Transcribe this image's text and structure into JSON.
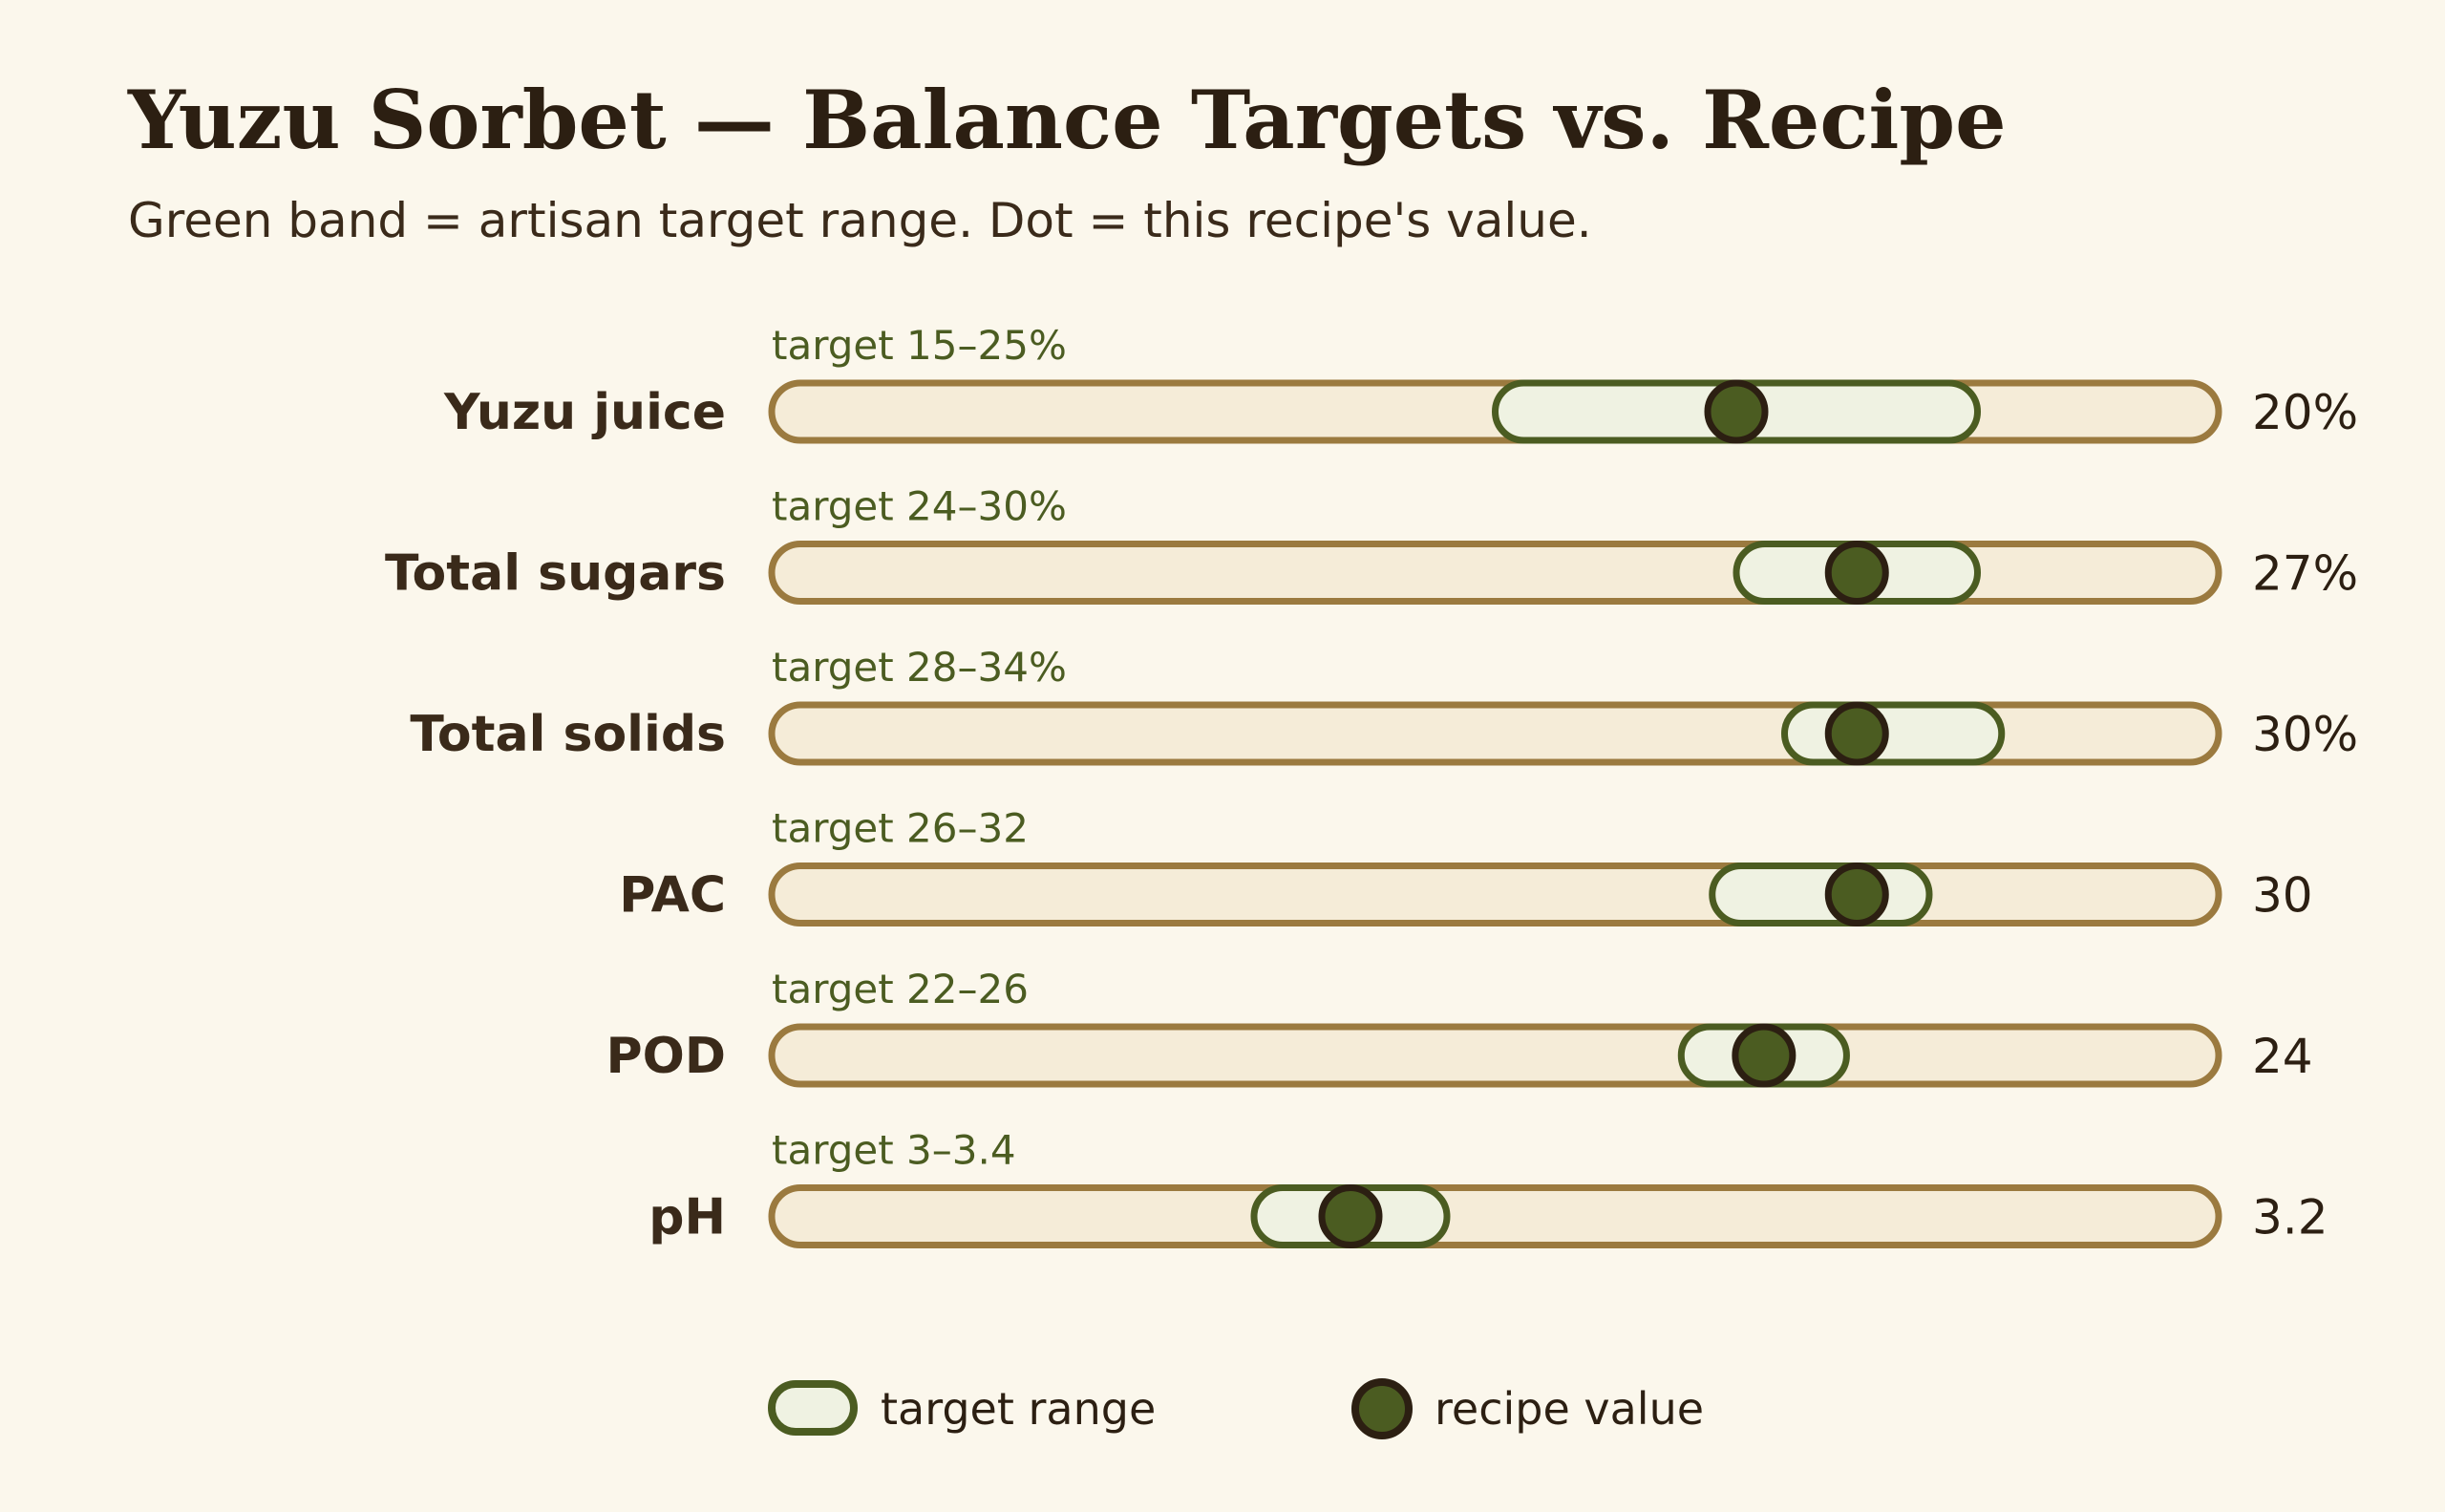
{
  "title": "Yuzu Sorbet — Balance Targets vs. Recipe",
  "subtitle": "Green band = artisan target range. Dot = this recipe's value.",
  "colors": {
    "background": "#fbf7ec",
    "track_fill": "#f5ecd8",
    "track_stroke": "#9b7a3f",
    "band_fill": "#eff2e2",
    "band_stroke": "#4b5c21",
    "dot_fill": "#4b5c21",
    "dot_stroke": "#2c1f12",
    "text": "#2c1f12"
  },
  "chart_data": {
    "type": "bullet",
    "rows": [
      {
        "label": "Yuzu juice",
        "target_label": "target 15–25%",
        "value_label": "20%",
        "value": 20,
        "target_min": 15,
        "target_max": 25,
        "scale_min": 0,
        "scale_max": 30
      },
      {
        "label": "Total sugars",
        "target_label": "target 24–30%",
        "value_label": "27%",
        "value": 27,
        "target_min": 24,
        "target_max": 30,
        "scale_min": 0,
        "scale_max": 36
      },
      {
        "label": "Total solids",
        "target_label": "target 28–34%",
        "value_label": "30%",
        "value": 30,
        "target_min": 28,
        "target_max": 34,
        "scale_min": 0,
        "scale_max": 40
      },
      {
        "label": "PAC",
        "target_label": "target 26–32",
        "value_label": "30",
        "value": 30,
        "target_min": 26,
        "target_max": 32,
        "scale_min": 0,
        "scale_max": 40
      },
      {
        "label": "POD",
        "target_label": "target 22–26",
        "value_label": "24",
        "value": 24,
        "target_min": 22,
        "target_max": 26,
        "scale_min": 0,
        "scale_max": 35
      },
      {
        "label": "pH",
        "target_label": "target 3–3.4",
        "value_label": "3.2",
        "value": 3.2,
        "target_min": 3.0,
        "target_max": 3.4,
        "scale_min": 2,
        "scale_max": 5
      }
    ]
  },
  "legend": {
    "range_label": "target range",
    "value_label": "recipe value"
  }
}
